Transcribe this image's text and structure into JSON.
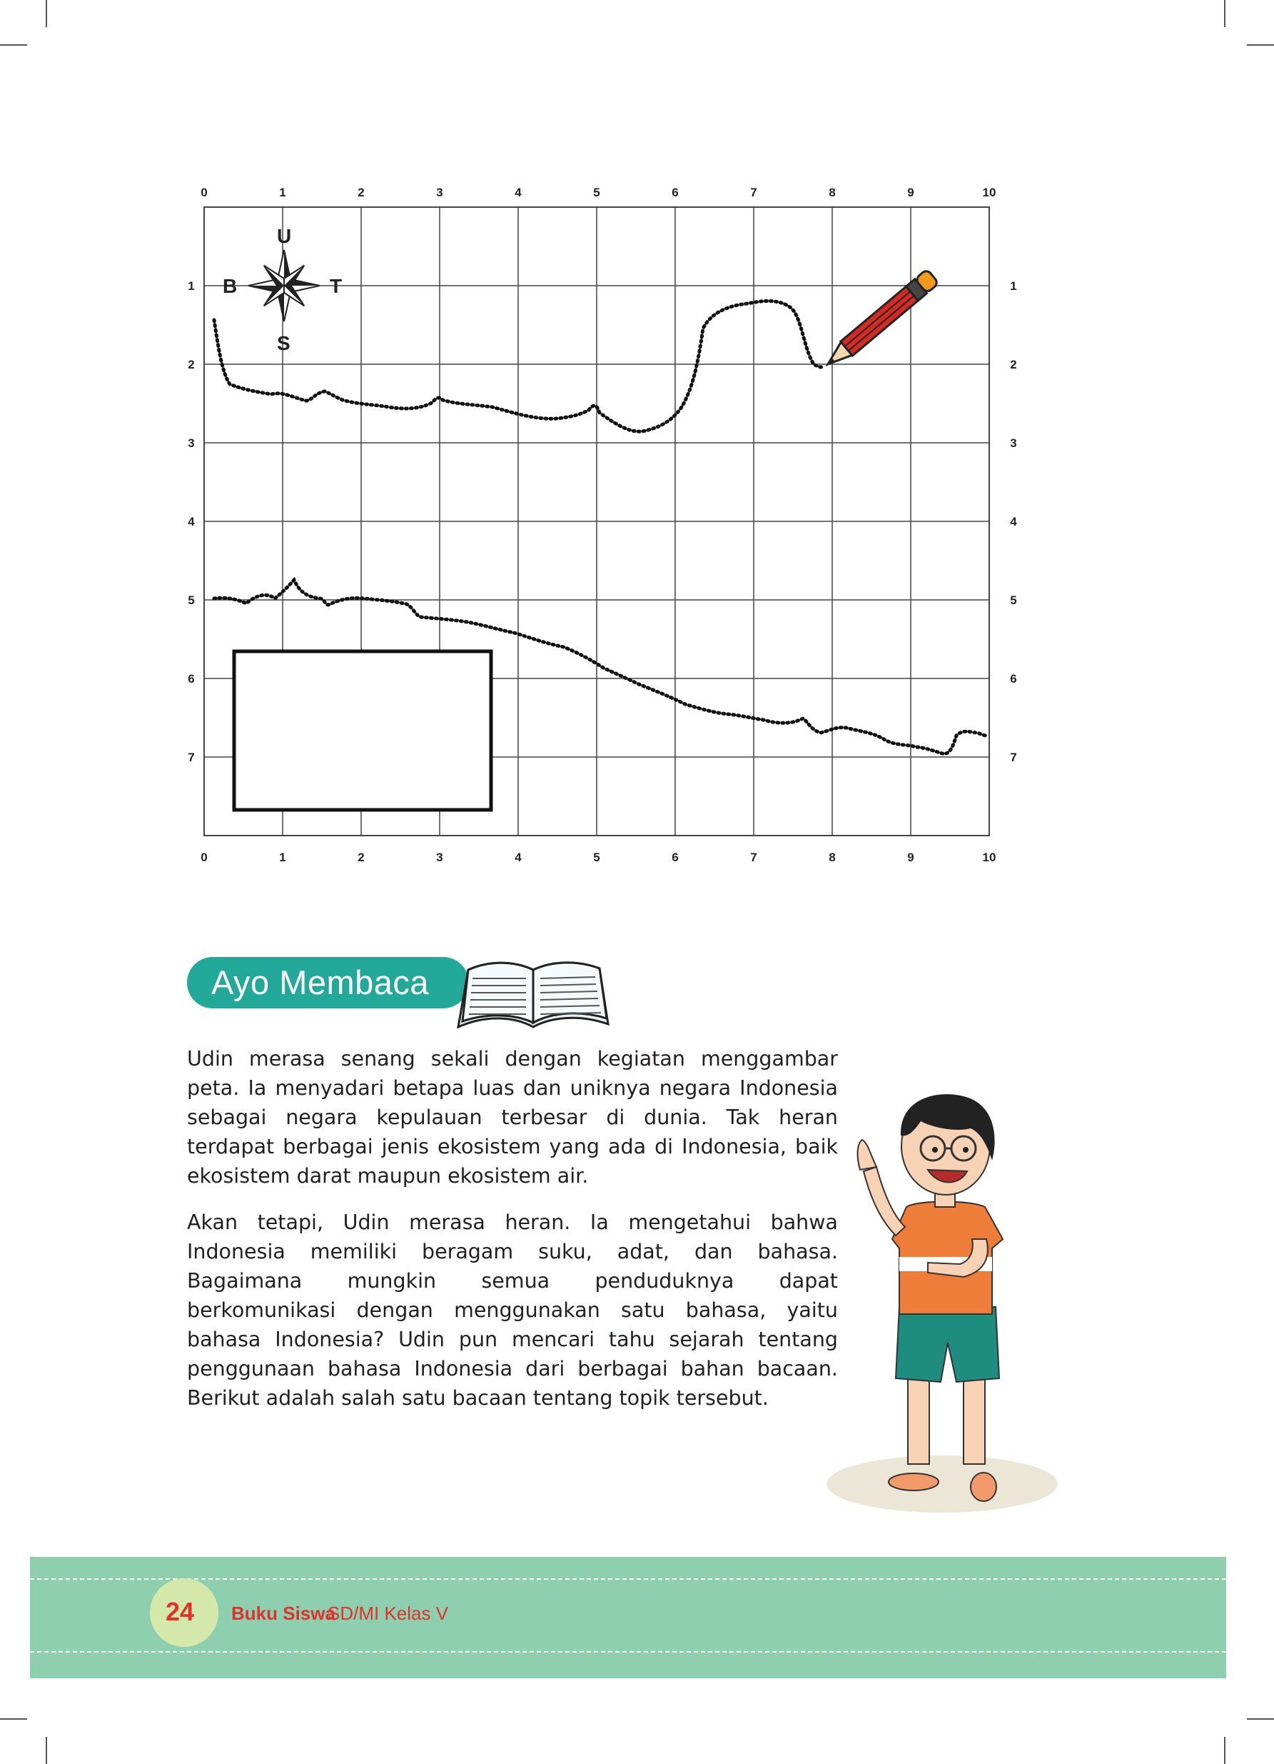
{
  "map_grid": {
    "x_ticks": [
      "0",
      "1",
      "2",
      "3",
      "4",
      "5",
      "6",
      "7",
      "8",
      "9",
      "10"
    ],
    "y_ticks": [
      "1",
      "2",
      "3",
      "4",
      "5",
      "6",
      "7"
    ],
    "compass": {
      "north": "U",
      "south": "S",
      "west": "B",
      "east": "T"
    }
  },
  "section": {
    "title": "Ayo Membaca"
  },
  "reading": {
    "paragraphs": [
      "Udin merasa senang sekali dengan kegiatan menggambar peta. Ia menyadari betapa luas dan uniknya negara Indonesia sebagai negara kepulauan terbesar di dunia. Tak heran terdapat berbagai jenis ekosistem yang ada di Indonesia, baik ekosistem darat maupun ekosistem air.",
      "Akan tetapi, Udin merasa heran. Ia mengetahui bahwa Indonesia memiliki beragam suku, adat, dan bahasa. Bagaimana mungkin semua penduduknya dapat berkomunikasi dengan menggunakan satu bahasa, yaitu bahasa Indonesia? Udin pun mencari tahu sejarah tentang penggunaan bahasa Indonesia dari berbagai bahan bacaan. Berikut adalah salah satu bacaan tentang topik tersebut."
    ]
  },
  "footer": {
    "page_number": "24",
    "book_bold": "Buku Siswa",
    "book_rest": "SD/MI Kelas V"
  },
  "colors": {
    "section_pill": "#23a99a",
    "footer_band": "#8ecfb0",
    "footer_text": "#e0322b",
    "page_circle": "#d4e8a9"
  }
}
